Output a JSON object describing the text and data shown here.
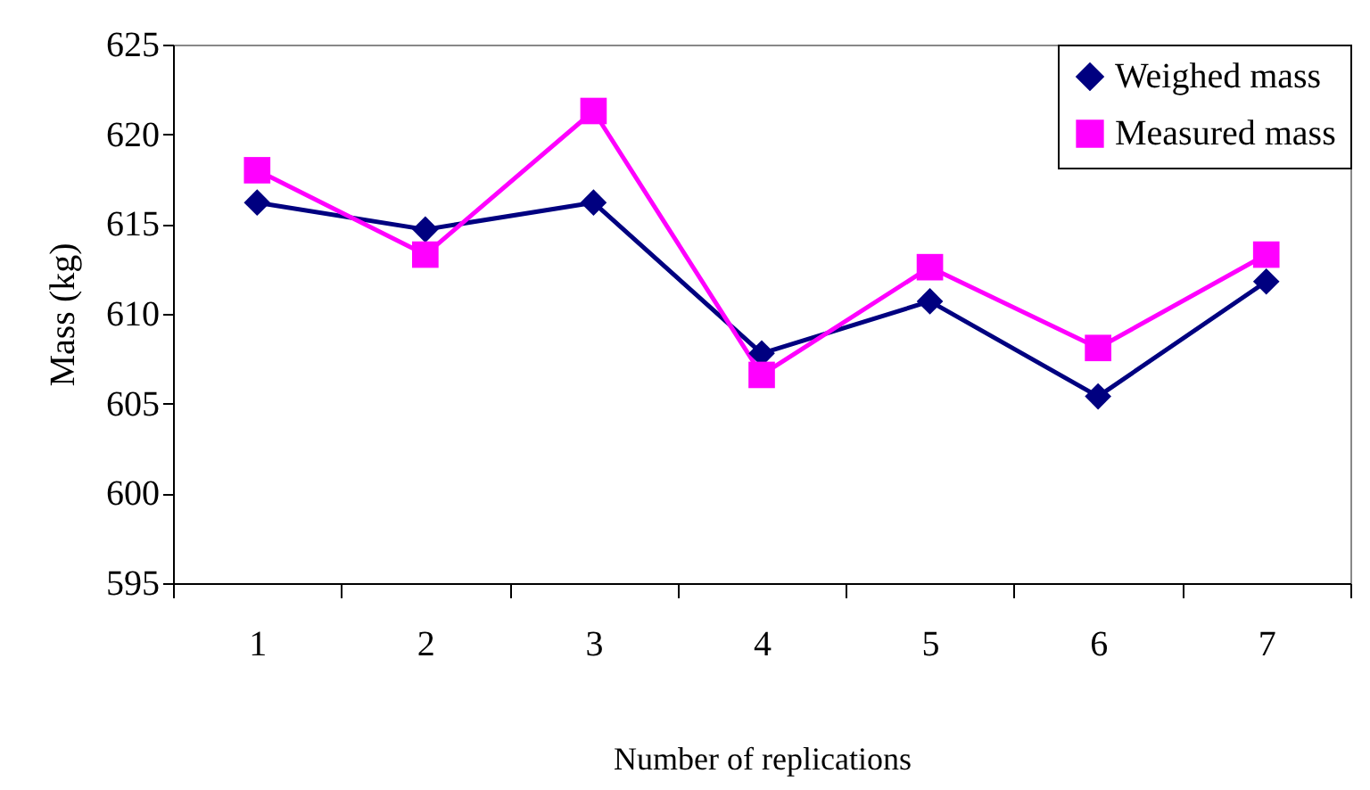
{
  "chart_data": {
    "type": "line",
    "xlabel": "Number of replications",
    "ylabel": "Mass (kg)",
    "categories": [
      "1",
      "2",
      "3",
      "4",
      "5",
      "6",
      "7"
    ],
    "series": [
      {
        "name": "Weighed mass",
        "color": "#000080",
        "marker": "diamond",
        "values": [
          616.2,
          614.7,
          616.2,
          607.8,
          610.7,
          605.4,
          611.8
        ]
      },
      {
        "name": "Measured mass",
        "color": "#ff00ff",
        "marker": "square",
        "values": [
          618.0,
          613.3,
          621.3,
          606.6,
          612.6,
          608.1,
          613.3
        ]
      }
    ],
    "ylim": [
      595,
      625
    ],
    "yticks": [
      595,
      600,
      605,
      610,
      615,
      620,
      625
    ],
    "grid": false,
    "legend": "top right"
  }
}
